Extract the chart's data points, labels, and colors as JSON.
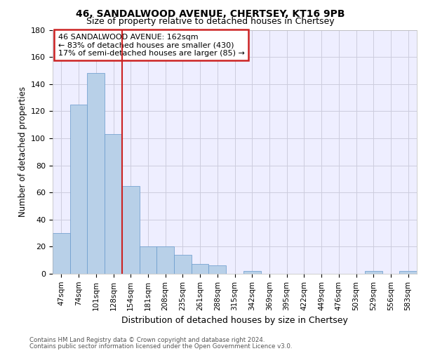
{
  "title1": "46, SANDALWOOD AVENUE, CHERTSEY, KT16 9PB",
  "title2": "Size of property relative to detached houses in Chertsey",
  "xlabel": "Distribution of detached houses by size in Chertsey",
  "ylabel": "Number of detached properties",
  "bar_labels": [
    "47sqm",
    "74sqm",
    "101sqm",
    "128sqm",
    "154sqm",
    "181sqm",
    "208sqm",
    "235sqm",
    "261sqm",
    "288sqm",
    "315sqm",
    "342sqm",
    "369sqm",
    "395sqm",
    "422sqm",
    "449sqm",
    "476sqm",
    "503sqm",
    "529sqm",
    "556sqm",
    "583sqm"
  ],
  "bar_values": [
    30,
    125,
    148,
    103,
    65,
    20,
    20,
    14,
    7,
    6,
    0,
    2,
    0,
    0,
    0,
    0,
    0,
    0,
    2,
    0,
    2
  ],
  "bar_color": "#b8d0e8",
  "bar_edge_color": "#6699cc",
  "grid_color": "#ccccdd",
  "background_color": "#eeeeff",
  "red_line_color": "#cc2222",
  "annotation_text1": "46 SANDALWOOD AVENUE: 162sqm",
  "annotation_text2": "← 83% of detached houses are smaller (430)",
  "annotation_text3": "17% of semi-detached houses are larger (85) →",
  "annotation_box_facecolor": "#ffffff",
  "annotation_box_edgecolor": "#cc2222",
  "ylim": [
    0,
    180
  ],
  "yticks": [
    0,
    20,
    40,
    60,
    80,
    100,
    120,
    140,
    160,
    180
  ],
  "footer1": "Contains HM Land Registry data © Crown copyright and database right 2024.",
  "footer2": "Contains public sector information licensed under the Open Government Licence v3.0."
}
